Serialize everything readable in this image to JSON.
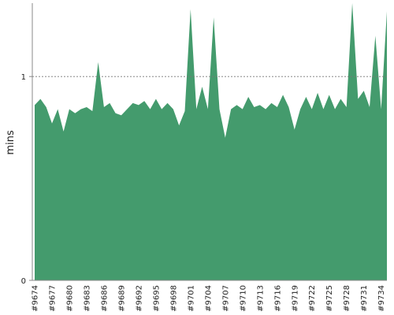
{
  "chart_data": {
    "type": "area",
    "title": "",
    "xlabel": "",
    "ylabel": "mins",
    "ylim": [
      0,
      1.36
    ],
    "yticks": [
      0,
      1
    ],
    "ytick_labels": [
      "0",
      "1"
    ],
    "reference_line": {
      "value": 1,
      "style": "dotted"
    },
    "xtick_labels": [
      "#9674",
      "#9677",
      "#9680",
      "#9683",
      "#9686",
      "#9689",
      "#9692",
      "#9695",
      "#9698",
      "#9701",
      "#9704",
      "#9707",
      "#9710",
      "#9713",
      "#9716",
      "#9719",
      "#9722",
      "#9725",
      "#9728",
      "#9731",
      "#9734"
    ],
    "x": [
      "#9674",
      "#9675",
      "#9676",
      "#9677",
      "#9678",
      "#9679",
      "#9680",
      "#9681",
      "#9682",
      "#9683",
      "#9684",
      "#9685",
      "#9686",
      "#9687",
      "#9688",
      "#9689",
      "#9690",
      "#9691",
      "#9692",
      "#9693",
      "#9694",
      "#9695",
      "#9696",
      "#9697",
      "#9698",
      "#9699",
      "#9700",
      "#9701",
      "#9702",
      "#9703",
      "#9704",
      "#9705",
      "#9706",
      "#9707",
      "#9708",
      "#9709",
      "#9710",
      "#9711",
      "#9712",
      "#9713",
      "#9714",
      "#9715",
      "#9716",
      "#9717",
      "#9718",
      "#9719",
      "#9720",
      "#9721",
      "#9722",
      "#9723",
      "#9724",
      "#9725",
      "#9726",
      "#9727",
      "#9728",
      "#9729",
      "#9730",
      "#9731",
      "#9732",
      "#9733",
      "#9734",
      "#9735"
    ],
    "series": [
      {
        "values": [
          0.86,
          0.89,
          0.85,
          0.77,
          0.84,
          0.73,
          0.84,
          0.82,
          0.84,
          0.85,
          0.83,
          1.07,
          0.85,
          0.87,
          0.82,
          0.81,
          0.84,
          0.87,
          0.86,
          0.88,
          0.84,
          0.89,
          0.84,
          0.87,
          0.84,
          0.76,
          0.83,
          1.33,
          0.84,
          0.95,
          0.84,
          1.29,
          0.84,
          0.7,
          0.84,
          0.86,
          0.84,
          0.9,
          0.85,
          0.86,
          0.84,
          0.87,
          0.85,
          0.91,
          0.85,
          0.74,
          0.84,
          0.9,
          0.84,
          0.92,
          0.84,
          0.91,
          0.84,
          0.89,
          0.85,
          1.36,
          0.89,
          0.93,
          0.85,
          1.2,
          0.84,
          1.32
        ]
      }
    ],
    "colors": {
      "area": "#449b6d",
      "axis": "#888888",
      "reference_line": "#777777"
    }
  }
}
